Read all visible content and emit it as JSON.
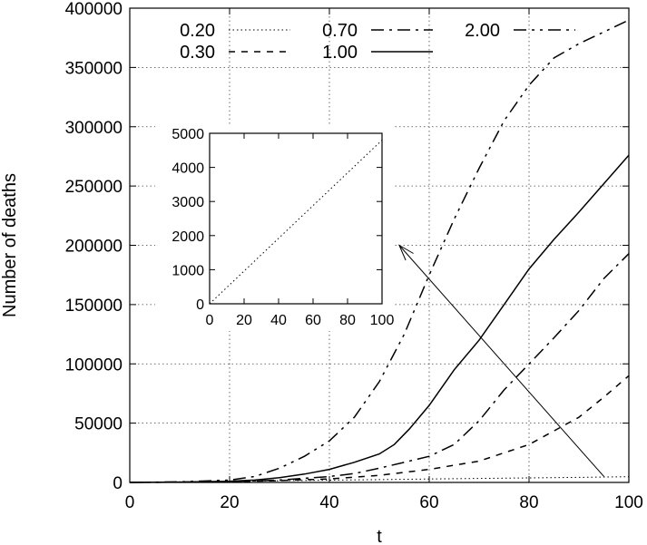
{
  "chart_data": [
    {
      "type": "line",
      "xlabel": "t",
      "ylabel": "Number of deaths",
      "xlim": [
        0,
        100
      ],
      "ylim": [
        0,
        400000
      ],
      "xticks": [
        "0",
        "20",
        "40",
        "60",
        "80",
        "100"
      ],
      "yticks": [
        "0",
        "50000",
        "100000",
        "150000",
        "200000",
        "250000",
        "300000",
        "350000",
        "400000"
      ],
      "grid": true,
      "legend_position": "top",
      "series": [
        {
          "name": "0.20",
          "style": "dotted",
          "x": [
            0,
            10,
            20,
            30,
            40,
            50,
            60,
            70,
            80,
            90,
            100
          ],
          "y": [
            0,
            480,
            960,
            1440,
            1920,
            2400,
            2880,
            3360,
            3840,
            4320,
            4800
          ]
        },
        {
          "name": "0.30",
          "style": "dashed",
          "x": [
            0,
            10,
            20,
            30,
            40,
            50,
            60,
            70,
            80,
            90,
            95,
            100
          ],
          "y": [
            0,
            200,
            600,
            1500,
            3000,
            6000,
            11000,
            18000,
            32000,
            55000,
            72000,
            90000
          ]
        },
        {
          "name": "0.70",
          "style": "dash-dot",
          "x": [
            0,
            10,
            20,
            30,
            40,
            45,
            50,
            55,
            60,
            65,
            70,
            75,
            80,
            85,
            90,
            95,
            100
          ],
          "y": [
            0,
            200,
            800,
            2000,
            5000,
            7500,
            12000,
            17000,
            22000,
            32000,
            52000,
            78000,
            100000,
            122000,
            145000,
            172000,
            193000
          ]
        },
        {
          "name": "1.00",
          "style": "solid",
          "x": [
            0,
            10,
            20,
            25,
            30,
            35,
            40,
            45,
            50,
            53,
            56,
            60,
            65,
            70,
            75,
            80,
            85,
            90,
            95,
            100
          ],
          "y": [
            0,
            300,
            1000,
            2000,
            4000,
            7000,
            11000,
            17000,
            24000,
            32000,
            45000,
            65000,
            95000,
            120000,
            150000,
            180000,
            205000,
            228000,
            252000,
            276000
          ]
        },
        {
          "name": "2.00",
          "style": "dash-dot-dot",
          "x": [
            0,
            10,
            20,
            25,
            30,
            35,
            40,
            45,
            50,
            55,
            60,
            65,
            70,
            75,
            80,
            85,
            90,
            95,
            100
          ],
          "y": [
            0,
            500,
            2000,
            5000,
            12000,
            22000,
            35000,
            55000,
            85000,
            125000,
            175000,
            222000,
            265000,
            305000,
            335000,
            358000,
            370000,
            380000,
            390000
          ]
        }
      ],
      "annotations": [
        {
          "type": "arrow",
          "from": [
            95,
            5000
          ],
          "to": [
            54,
            200000
          ]
        }
      ]
    },
    {
      "type": "line",
      "role": "inset",
      "xlim": [
        0,
        100
      ],
      "ylim": [
        0,
        5000
      ],
      "xticks": [
        "0",
        "20",
        "40",
        "60",
        "80",
        "100"
      ],
      "yticks": [
        "0",
        "1000",
        "2000",
        "3000",
        "4000",
        "5000"
      ],
      "grid": false,
      "series": [
        {
          "style": "dotted",
          "x": [
            0,
            100
          ],
          "y": [
            0,
            4800
          ]
        }
      ]
    }
  ]
}
